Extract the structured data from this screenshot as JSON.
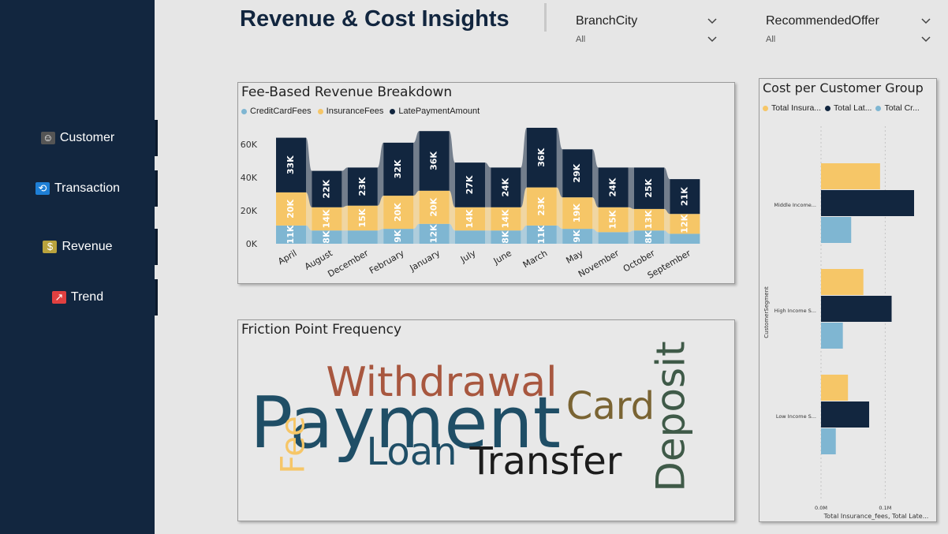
{
  "header": {
    "title": "Revenue & Cost Insights"
  },
  "slicers": [
    {
      "label": "BranchCity",
      "value": "All"
    },
    {
      "label": "RecommendedOffer",
      "value": "All"
    }
  ],
  "nav": [
    {
      "label": "Customer",
      "icon": "person-icon",
      "icon_glyph": "☺",
      "icon_color": "#555555"
    },
    {
      "label": "Transaction",
      "icon": "refresh-icon",
      "icon_glyph": "⟲",
      "icon_color": "#1e7fd6"
    },
    {
      "label": "Revenue",
      "icon": "money-icon",
      "icon_glyph": "$",
      "icon_color": "#b9a33d"
    },
    {
      "label": "Trend",
      "icon": "trend-chart-icon",
      "icon_glyph": "↗",
      "icon_color": "#e04040"
    }
  ],
  "colors": {
    "navy": "#12263f",
    "credit": "#7fb6d2",
    "insurance": "#f6c667",
    "late": "#12263f"
  },
  "fee_chart": {
    "title": "Fee-Based Revenue Breakdown",
    "legend": [
      "CreditCardFees",
      "InsuranceFees",
      "LatePaymentAmount"
    ],
    "yticks": [
      "0K",
      "20K",
      "40K",
      "60K"
    ],
    "chart_data": {
      "type": "bar",
      "stacked": true,
      "categories": [
        "April",
        "August",
        "December",
        "February",
        "January",
        "July",
        "June",
        "March",
        "May",
        "November",
        "October",
        "September"
      ],
      "series": [
        {
          "name": "CreditCardFees",
          "values": [
            11,
            8,
            8,
            9,
            12,
            8,
            8,
            11,
            9,
            7,
            8,
            6
          ],
          "labels": [
            "11K",
            "8K",
            "",
            "9K",
            "12K",
            "",
            "8K",
            "11K",
            "9K",
            "",
            "8K",
            ""
          ]
        },
        {
          "name": "InsuranceFees",
          "values": [
            20,
            14,
            15,
            20,
            20,
            14,
            14,
            23,
            19,
            15,
            13,
            12
          ],
          "labels": [
            "20K",
            "14K",
            "15K",
            "20K",
            "20K",
            "14K",
            "14K",
            "23K",
            "19K",
            "15K",
            "13K",
            "12K"
          ]
        },
        {
          "name": "LatePaymentAmount",
          "values": [
            33,
            22,
            23,
            32,
            36,
            27,
            24,
            36,
            29,
            24,
            25,
            21
          ],
          "labels": [
            "33K",
            "22K",
            "23K",
            "32K",
            "36K",
            "27K",
            "24K",
            "36K",
            "29K",
            "24K",
            "25K",
            "21K"
          ]
        }
      ],
      "ylim": [
        0,
        70
      ]
    }
  },
  "wordcloud": {
    "title": "Friction Point Frequency",
    "words": [
      {
        "text": "Payment",
        "color": "#1f4e66"
      },
      {
        "text": "Withdrawal",
        "color": "#a8573f"
      },
      {
        "text": "Card",
        "color": "#7a6433"
      },
      {
        "text": "Deposit",
        "color": "#3f5a48"
      },
      {
        "text": "Loan",
        "color": "#1f4e66"
      },
      {
        "text": "Transfer",
        "color": "#1c1c1c"
      },
      {
        "text": "Fee",
        "color": "#f6c667"
      }
    ]
  },
  "cost_chart": {
    "title": "Cost per Customer Group",
    "legend": [
      "Total Insura...",
      "Total Lat...",
      "Total Cr..."
    ],
    "ylabel": "CustomerSegment",
    "xlabel": "Total Insurance_fees, Total Late...",
    "xticks": [
      "0.0M",
      "0.1M"
    ],
    "chart_data": {
      "type": "bar",
      "orientation": "horizontal",
      "categories": [
        "Middle Income...",
        "High Income S...",
        "Low Income S..."
      ],
      "series": [
        {
          "name": "Total Insura...",
          "values": [
            0.092,
            0.066,
            0.042
          ]
        },
        {
          "name": "Total Lat...",
          "values": [
            0.145,
            0.11,
            0.075
          ]
        },
        {
          "name": "Total Cr...",
          "values": [
            0.047,
            0.034,
            0.023
          ]
        }
      ],
      "xlim": [
        0,
        0.16
      ]
    }
  }
}
